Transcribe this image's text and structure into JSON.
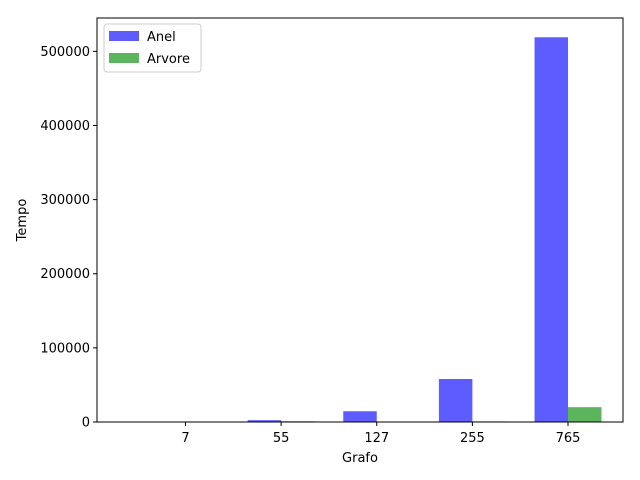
{
  "chart_data": {
    "type": "bar",
    "title": "",
    "xlabel": "Grafo",
    "ylabel": "Tempo",
    "categories": [
      "7",
      "55",
      "127",
      "255",
      "765"
    ],
    "series": [
      {
        "name": "Anel",
        "color": "#3333ff",
        "values": [
          300,
          2500,
          14500,
          58000,
          519000
        ]
      },
      {
        "name": "Arvore",
        "color": "#33a333",
        "values": [
          100,
          1000,
          500,
          800,
          20000
        ]
      }
    ],
    "ylim": [
      0,
      545000
    ],
    "yticks": [
      0,
      100000,
      200000,
      300000,
      400000,
      500000
    ],
    "grid": false,
    "legend_position": "top-left"
  }
}
